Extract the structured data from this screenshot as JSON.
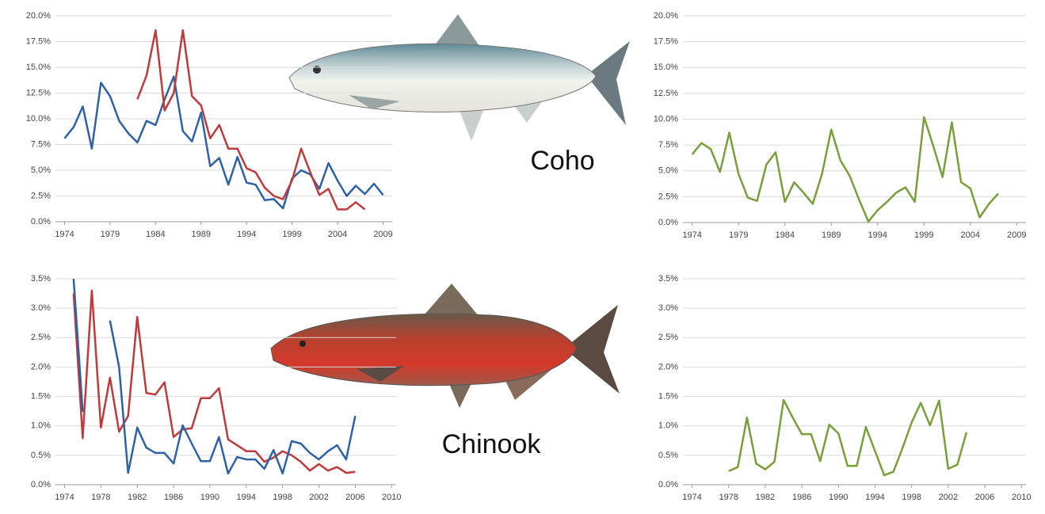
{
  "labels": [
    "Coho",
    "Chinook"
  ],
  "chart_data": [
    {
      "type": "line",
      "x": [
        1974,
        1975,
        1976,
        1977,
        1978,
        1979,
        1980,
        1981,
        1982,
        1983,
        1984,
        1985,
        1986,
        1987,
        1988,
        1989,
        1990,
        1991,
        1992,
        1993,
        1994,
        1995,
        1996,
        1997,
        1998,
        1999,
        2000,
        2001,
        2002,
        2003,
        2004,
        2005,
        2006,
        2007,
        2008,
        2009
      ],
      "series": [
        {
          "color": "#2e62a8",
          "values": [
            8.1,
            9.2,
            11.2,
            7.1,
            13.5,
            12.2,
            9.8,
            8.6,
            7.7,
            9.8,
            9.4,
            11.9,
            14.1,
            8.8,
            7.8,
            10.6,
            5.4,
            6.2,
            3.6,
            6.3,
            3.8,
            3.6,
            2.1,
            2.2,
            1.3,
            4.2,
            5.0,
            4.6,
            3.2,
            5.7,
            4.0,
            2.5,
            3.5,
            2.7,
            3.7,
            2.6
          ]
        },
        {
          "color": "#c0393b",
          "values": [
            null,
            null,
            null,
            null,
            null,
            null,
            null,
            null,
            11.9,
            14.2,
            18.6,
            10.8,
            12.5,
            18.6,
            12.2,
            11.3,
            8.1,
            9.4,
            7.1,
            7.1,
            5.2,
            4.8,
            3.3,
            2.5,
            2.2,
            4.0,
            7.1,
            4.8,
            2.6,
            3.2,
            1.2,
            1.2,
            1.9,
            1.2,
            null,
            null
          ]
        }
      ],
      "xlim": [
        1973,
        2010
      ],
      "xticks": [
        1974,
        1979,
        1984,
        1989,
        1994,
        1999,
        2004,
        2009
      ],
      "ylim": [
        0,
        20
      ],
      "yticks": [
        {
          "value": 0,
          "label": "0.0%"
        },
        {
          "value": 2.5,
          "label": "2.5%"
        },
        {
          "value": 5,
          "label": "5.0%"
        },
        {
          "value": 7.5,
          "label": "7.5%"
        },
        {
          "value": 10,
          "label": "10.0%"
        },
        {
          "value": 12.5,
          "label": "12.5%"
        },
        {
          "value": 15,
          "label": "15.0%"
        },
        {
          "value": 17.5,
          "label": "17.5%"
        },
        {
          "value": 20,
          "label": "20.0%"
        }
      ],
      "grid": true
    },
    {
      "type": "line",
      "x": [
        1974,
        1975,
        1976,
        1977,
        1978,
        1979,
        1980,
        1981,
        1982,
        1983,
        1984,
        1985,
        1986,
        1987,
        1988,
        1989,
        1990,
        1991,
        1992,
        1993,
        1994,
        1995,
        1996,
        1997,
        1998,
        1999,
        2000,
        2001,
        2002,
        2003,
        2004,
        2005,
        2006,
        2007
      ],
      "series": [
        {
          "color": "#77a03a",
          "values": [
            6.6,
            7.7,
            7.1,
            4.9,
            8.7,
            4.7,
            2.4,
            2.1,
            5.6,
            6.8,
            2.0,
            3.9,
            2.9,
            1.8,
            4.7,
            9.0,
            6.0,
            4.5,
            2.2,
            0.1,
            1.2,
            2.0,
            2.9,
            3.4,
            2.0,
            10.2,
            7.4,
            4.4,
            9.7,
            3.9,
            3.3,
            0.5,
            1.8,
            2.8
          ]
        }
      ],
      "xlim": [
        1973,
        2010
      ],
      "xticks": [
        1974,
        1979,
        1984,
        1989,
        1994,
        1999,
        2004,
        2009
      ],
      "ylim": [
        0,
        20
      ],
      "yticks": [
        {
          "value": 0,
          "label": "0.0%"
        },
        {
          "value": 2.5,
          "label": "2.5%"
        },
        {
          "value": 5,
          "label": "5.0%"
        },
        {
          "value": 7.5,
          "label": "7.5%"
        },
        {
          "value": 10,
          "label": "10.0%"
        },
        {
          "value": 12.5,
          "label": "12.5%"
        },
        {
          "value": 15,
          "label": "15.0%"
        },
        {
          "value": 17.5,
          "label": "17.5%"
        },
        {
          "value": 20,
          "label": "20.0%"
        }
      ],
      "grid": true
    },
    {
      "type": "line",
      "x": [
        1975,
        1976,
        1977,
        1978,
        1979,
        1980,
        1981,
        1982,
        1983,
        1984,
        1985,
        1986,
        1987,
        1988,
        1989,
        1990,
        1991,
        1992,
        1993,
        1994,
        1995,
        1996,
        1997,
        1998,
        1999,
        2000,
        2001,
        2002,
        2003,
        2004,
        2005,
        2006
      ],
      "series": [
        {
          "color": "#c0393b",
          "values": [
            3.25,
            0.79,
            3.3,
            0.97,
            1.82,
            0.9,
            1.17,
            2.85,
            1.56,
            1.53,
            1.74,
            0.81,
            0.94,
            0.96,
            1.47,
            1.47,
            1.64,
            0.77,
            0.67,
            0.57,
            0.57,
            0.39,
            0.46,
            0.57,
            0.5,
            0.39,
            0.24,
            0.35,
            0.24,
            0.3,
            0.2,
            0.22
          ]
        },
        {
          "color": "#2e62a8",
          "values": [
            3.5,
            1.24,
            null,
            null,
            2.79,
            2.0,
            0.2,
            0.97,
            0.63,
            0.54,
            0.54,
            0.36,
            1.01,
            0.7,
            0.4,
            0.4,
            0.81,
            0.19,
            0.47,
            0.43,
            0.43,
            0.27,
            0.59,
            0.19,
            0.74,
            0.7,
            0.54,
            0.43,
            0.57,
            0.67,
            0.43,
            1.17
          ]
        }
      ],
      "xlim": [
        1973,
        2010.5
      ],
      "xticks": [
        1974,
        1978,
        1982,
        1986,
        1990,
        1994,
        1998,
        2002,
        2006,
        2010
      ],
      "ylim": [
        0,
        3.5
      ],
      "yticks": [
        {
          "value": 0,
          "label": "0.0%"
        },
        {
          "value": 0.5,
          "label": "0.5%"
        },
        {
          "value": 1,
          "label": "1.0%"
        },
        {
          "value": 1.5,
          "label": "1.5%"
        },
        {
          "value": 2,
          "label": "2.0%"
        },
        {
          "value": 2.5,
          "label": "2.5%"
        },
        {
          "value": 3,
          "label": "3.0%"
        },
        {
          "value": 3.5,
          "label": "3.5%"
        }
      ],
      "grid": true
    },
    {
      "type": "line",
      "x": [
        1978,
        1979,
        1980,
        1981,
        1982,
        1983,
        1984,
        1985,
        1986,
        1987,
        1988,
        1989,
        1990,
        1991,
        1992,
        1993,
        1994,
        1995,
        1996,
        1997,
        1998,
        1999,
        2000,
        2001,
        2002,
        2003,
        2004
      ],
      "series": [
        {
          "color": "#77a03a",
          "values": [
            0.23,
            0.3,
            1.14,
            0.36,
            0.26,
            0.39,
            1.44,
            1.14,
            0.86,
            0.86,
            0.4,
            1.02,
            0.87,
            0.32,
            0.32,
            0.98,
            0.57,
            0.16,
            0.22,
            0.62,
            1.06,
            1.39,
            1.01,
            1.43,
            0.27,
            0.34,
            0.89
          ]
        }
      ],
      "xlim": [
        1973,
        2010.5
      ],
      "xticks": [
        1974,
        1978,
        1982,
        1986,
        1990,
        1994,
        1998,
        2002,
        2006,
        2010
      ],
      "ylim": [
        0,
        3.5
      ],
      "yticks": [
        {
          "value": 0,
          "label": "0.0%"
        },
        {
          "value": 0.5,
          "label": "0.5%"
        },
        {
          "value": 1,
          "label": "1.0%"
        },
        {
          "value": 1.5,
          "label": "1.5%"
        },
        {
          "value": 2,
          "label": "2.0%"
        },
        {
          "value": 2.5,
          "label": "2.5%"
        },
        {
          "value": 3,
          "label": "3.0%"
        },
        {
          "value": 3.5,
          "label": "3.5%"
        }
      ],
      "grid": true
    }
  ]
}
